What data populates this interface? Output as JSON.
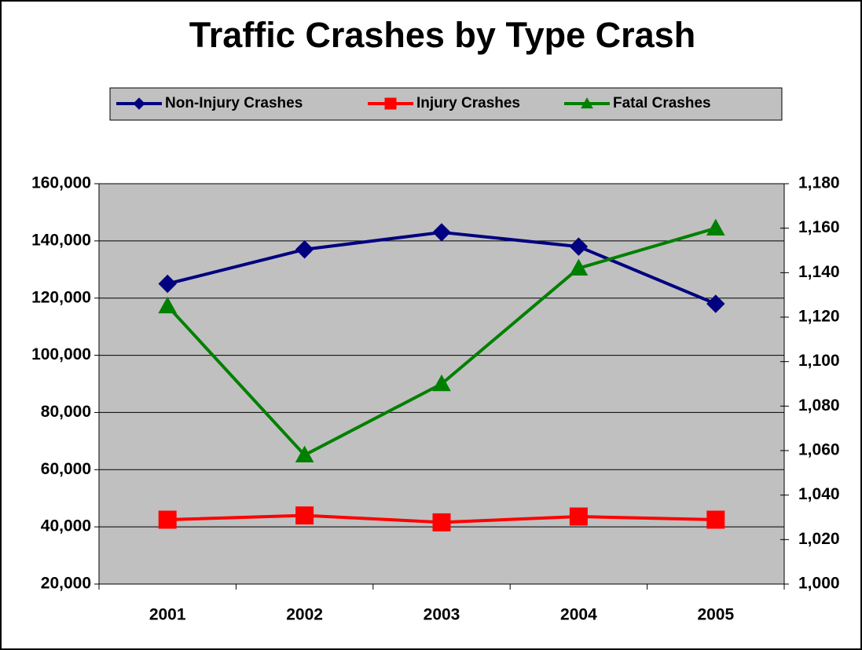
{
  "chart_data": {
    "type": "line",
    "title": "Traffic Crashes by Type Crash",
    "categories": [
      "2001",
      "2002",
      "2003",
      "2004",
      "2005"
    ],
    "series": [
      {
        "name": "Non-Injury Crashes",
        "color": "#000080",
        "marker": "diamond",
        "values": [
          125000,
          137000,
          143000,
          138000,
          118000
        ]
      },
      {
        "name": "Injury Crashes",
        "color": "#ff0000",
        "marker": "square",
        "values": [
          42500,
          44000,
          41600,
          43600,
          42500
        ]
      },
      {
        "name": "Fatal Crashes",
        "color": "#008000",
        "marker": "triangle",
        "axis": "y2",
        "values": [
          1125,
          1058,
          1090,
          1142,
          1160
        ]
      }
    ],
    "ylim": [
      20000,
      160000
    ],
    "yticks": [
      {
        "value": 20000,
        "label": "20,000"
      },
      {
        "value": 40000,
        "label": "40,000"
      },
      {
        "value": 60000,
        "label": "60,000"
      },
      {
        "value": 80000,
        "label": "80,000"
      },
      {
        "value": 100000,
        "label": "100,000"
      },
      {
        "value": 120000,
        "label": "120,000"
      },
      {
        "value": 140000,
        "label": "140,000"
      },
      {
        "value": 160000,
        "label": "160,000"
      }
    ],
    "y2lim": [
      1000,
      1180
    ],
    "y2ticks": [
      {
        "value": 1000,
        "label": "1,000"
      },
      {
        "value": 1020,
        "label": "1,020"
      },
      {
        "value": 1040,
        "label": "1,040"
      },
      {
        "value": 1060,
        "label": "1,060"
      },
      {
        "value": 1080,
        "label": "1,080"
      },
      {
        "value": 1100,
        "label": "1,100"
      },
      {
        "value": 1120,
        "label": "1,120"
      },
      {
        "value": 1140,
        "label": "1,140"
      },
      {
        "value": 1160,
        "label": "1,160"
      },
      {
        "value": 1180,
        "label": "1,180"
      }
    ],
    "grid": true,
    "legend": "top",
    "plot_background": "#c0c0c0"
  }
}
